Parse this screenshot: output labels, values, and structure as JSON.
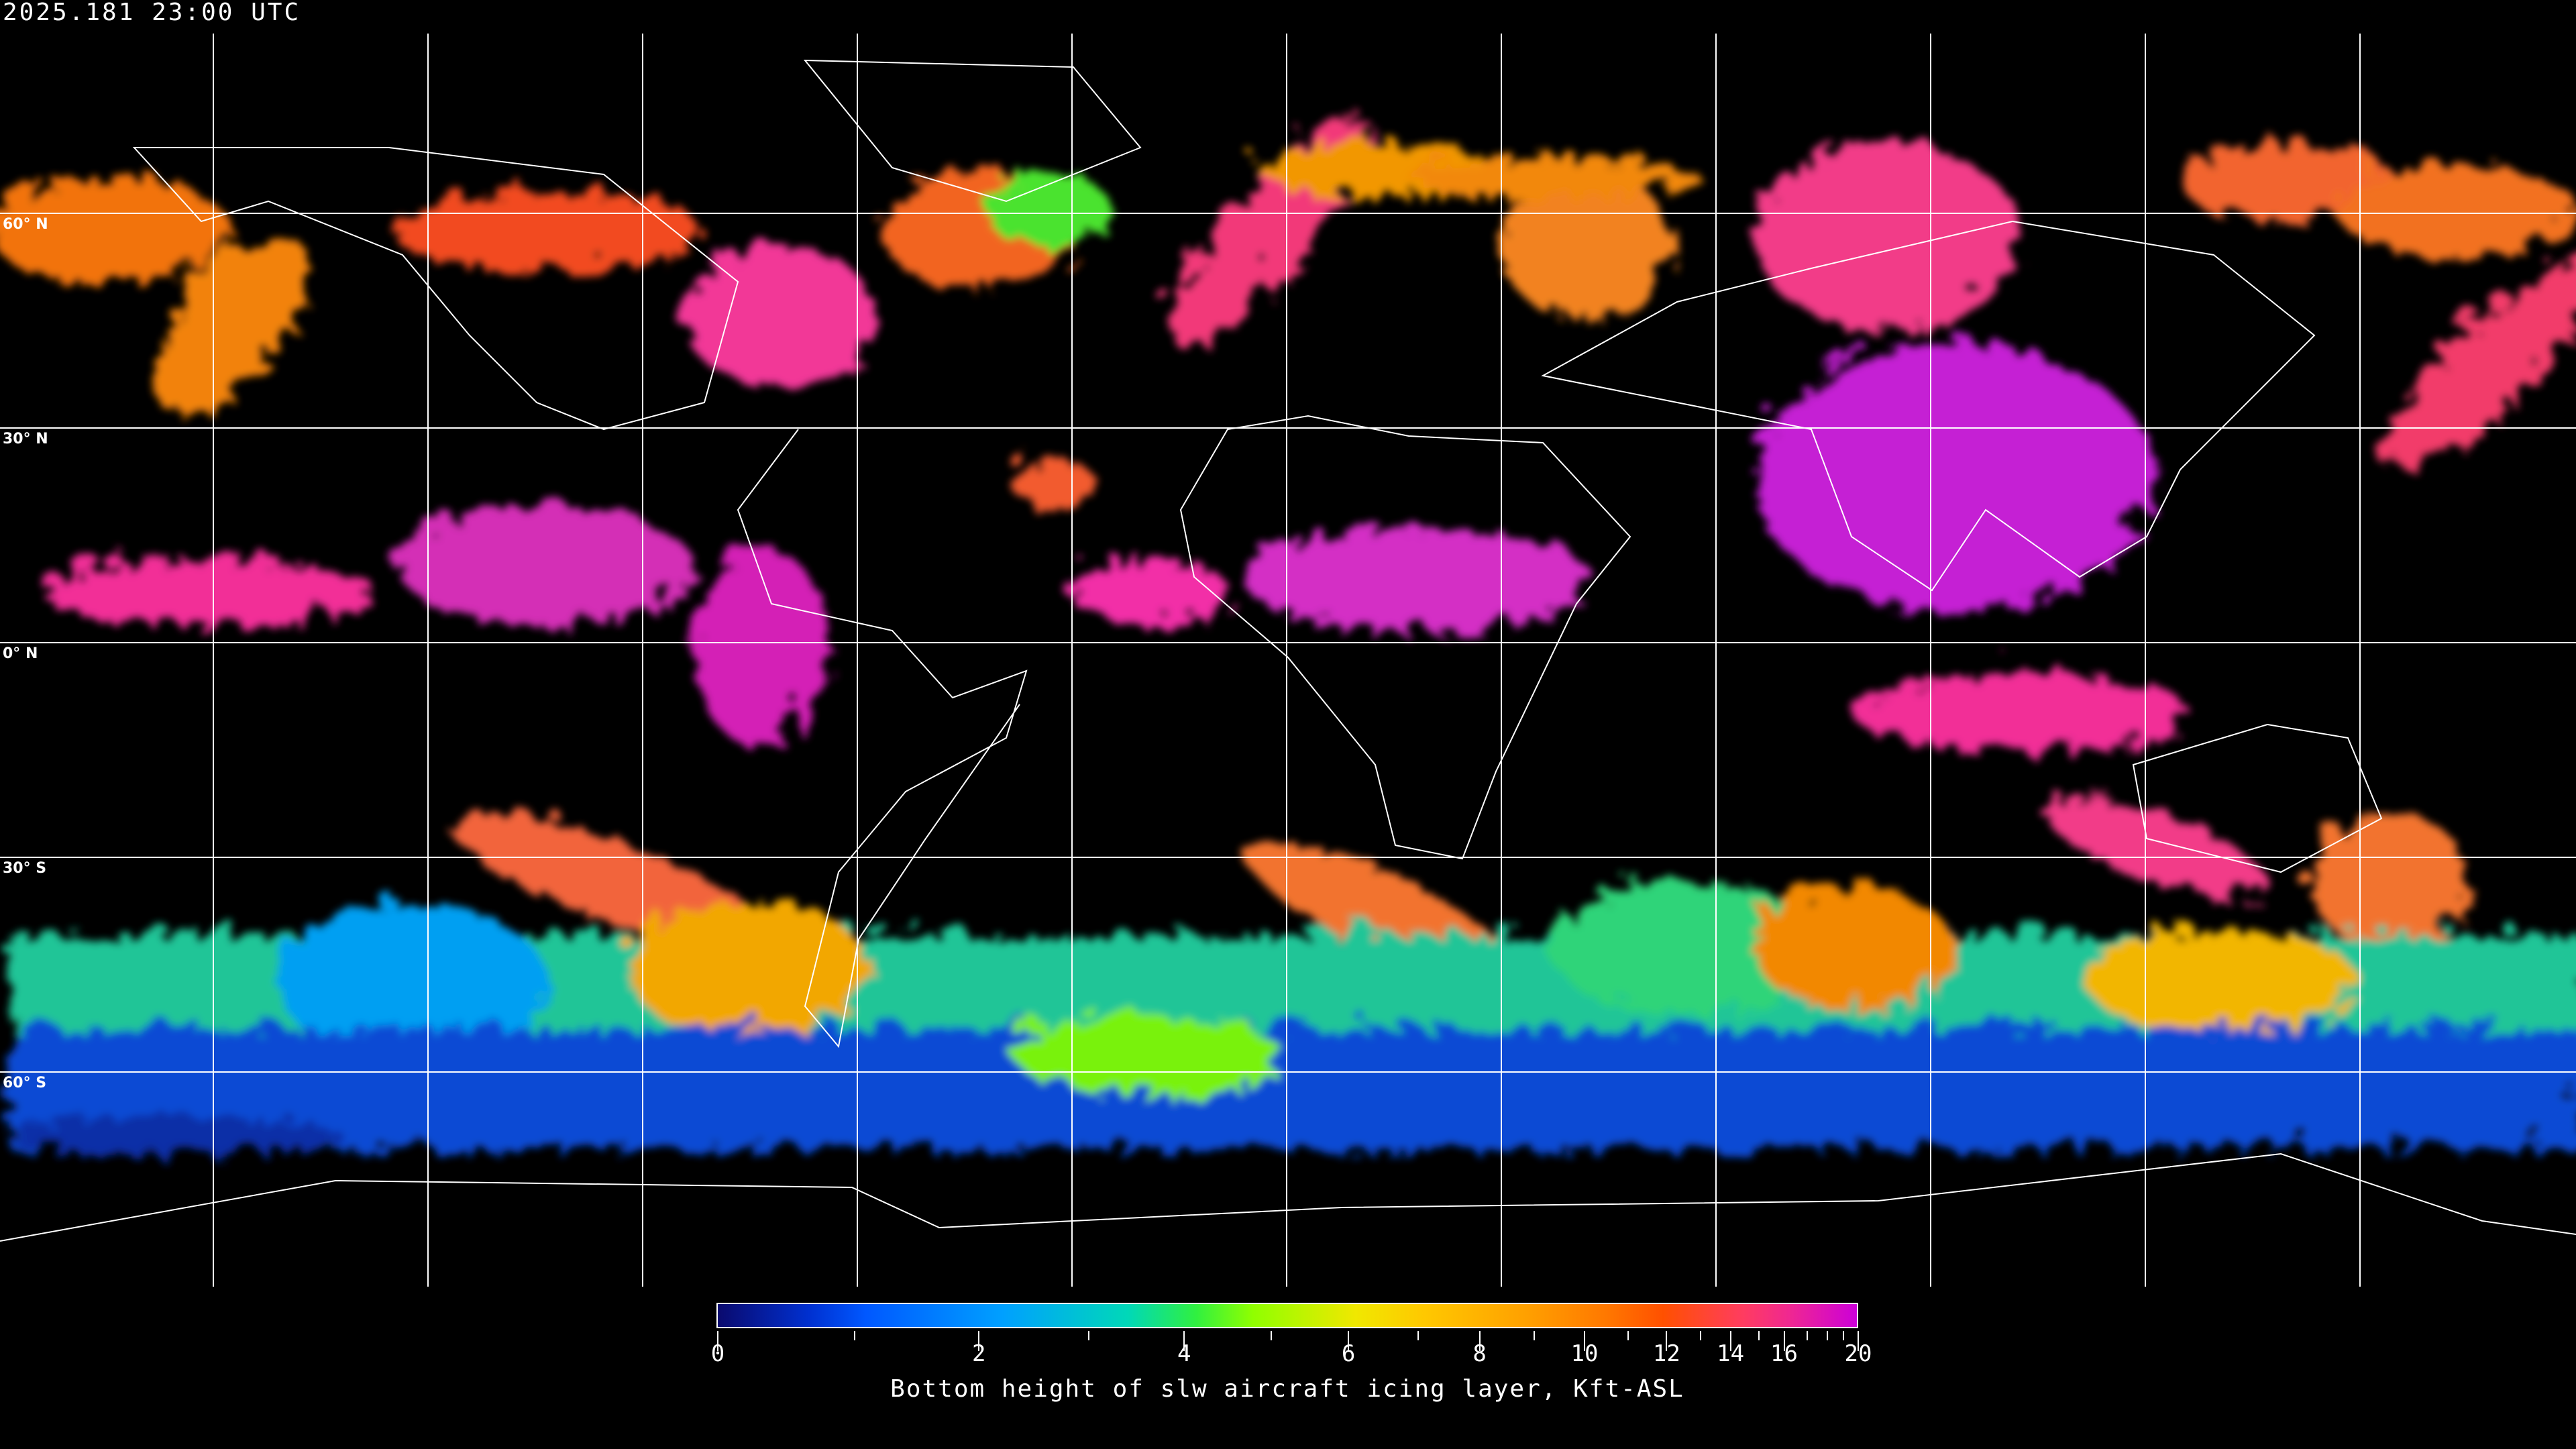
{
  "title": "2025.181 23:00 UTC",
  "map": {
    "projection": "equirectangular",
    "grid_spacing_deg": 30,
    "lat_labels": [
      "60° N",
      "30° N",
      "0° N",
      "30° S",
      "60° S"
    ],
    "coastline_color": "#ffffff",
    "grid_color": "#ffffff"
  },
  "colorbar": {
    "label": "Bottom height of slw aircraft icing layer, Kft-ASL",
    "min": 0,
    "max": 20,
    "tick_labels": [
      "0",
      "2",
      "4",
      "6",
      "8",
      "10",
      "12",
      "14",
      "16",
      "20"
    ],
    "colors": [
      "#0a0a6e",
      "#0058ff",
      "#00a0ff",
      "#00d8b8",
      "#90ff00",
      "#f0e800",
      "#ffa000",
      "#ff5000",
      "#ff3c60",
      "#cc00d8"
    ]
  }
}
